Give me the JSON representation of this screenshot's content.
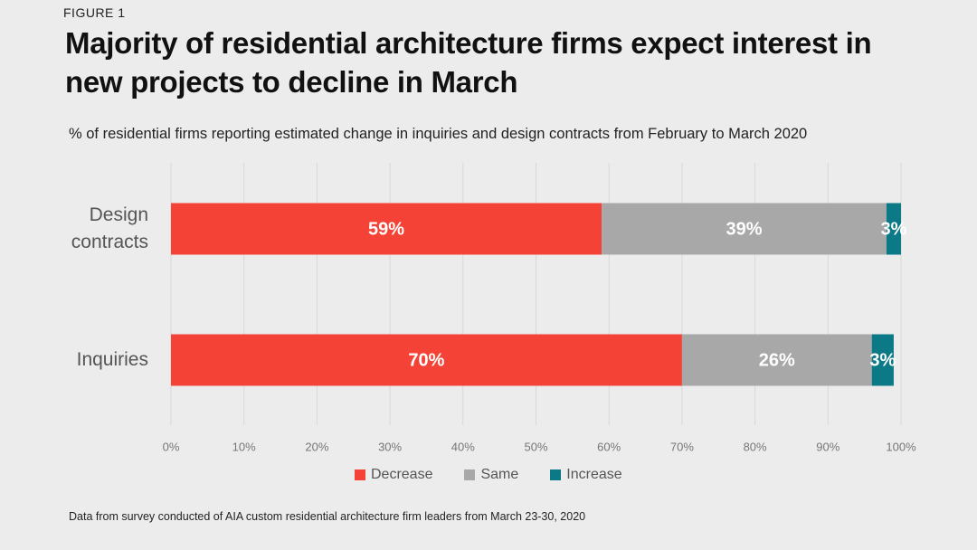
{
  "figure_label": "FIGURE 1",
  "title": "Majority of residential architecture firms expect interest in new projects to decline in March",
  "subtitle": "% of residential firms reporting estimated change in inquiries and design contracts from February to March 2020",
  "footnote": "Data from survey conducted of AIA custom residential architecture firm leaders from March 23-30, 2020",
  "chart_data": {
    "type": "bar",
    "orientation": "horizontal",
    "stacked": true,
    "categories": [
      "Design contracts",
      "Inquiries"
    ],
    "series": [
      {
        "name": "Decrease",
        "values": [
          59,
          70
        ],
        "labels": [
          "59%",
          "70%"
        ],
        "color": "#f44336"
      },
      {
        "name": "Same",
        "values": [
          39,
          26
        ],
        "labels": [
          "39%",
          "26%"
        ],
        "color": "#a8a8a8"
      },
      {
        "name": "Increase",
        "values": [
          3,
          3
        ],
        "labels": [
          "3%",
          "3%"
        ],
        "color": "#0b7a86"
      }
    ],
    "xlim": [
      0,
      100
    ],
    "x_ticks": [
      "0%",
      "10%",
      "20%",
      "30%",
      "40%",
      "50%",
      "60%",
      "70%",
      "80%",
      "90%",
      "100%"
    ],
    "grid": true,
    "legend_position": "bottom"
  }
}
